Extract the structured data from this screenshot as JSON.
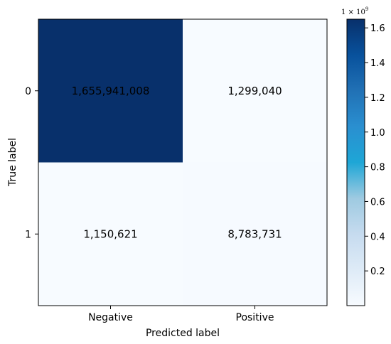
{
  "chart_data": {
    "type": "heatmap",
    "title": "",
    "xlabel": "Predicted label",
    "ylabel": "True label",
    "x_categories": [
      "Negative",
      "Positive"
    ],
    "y_categories": [
      "0",
      "1"
    ],
    "values": [
      [
        1655941008,
        1299040
      ],
      [
        1150621,
        8783731
      ]
    ],
    "cell_labels": [
      [
        "1,655,941,008",
        "1,299,040"
      ],
      [
        "1,150,621",
        "8,783,731"
      ]
    ],
    "colormap": "Blues",
    "colorbar": {
      "multiplier_label": "1 × 10",
      "multiplier_exponent": "9",
      "range": [
        0,
        1650000000
      ],
      "ticks": [
        {
          "value": 200000000,
          "label": "0.2"
        },
        {
          "value": 400000000,
          "label": "0.4"
        },
        {
          "value": 600000000,
          "label": "0.6"
        },
        {
          "value": 800000000,
          "label": "0.8"
        },
        {
          "value": 1000000000,
          "label": "1.0"
        },
        {
          "value": 1200000000,
          "label": "1.2"
        },
        {
          "value": 1400000000,
          "label": "1.4"
        },
        {
          "value": 1600000000,
          "label": "1.6"
        }
      ]
    }
  }
}
